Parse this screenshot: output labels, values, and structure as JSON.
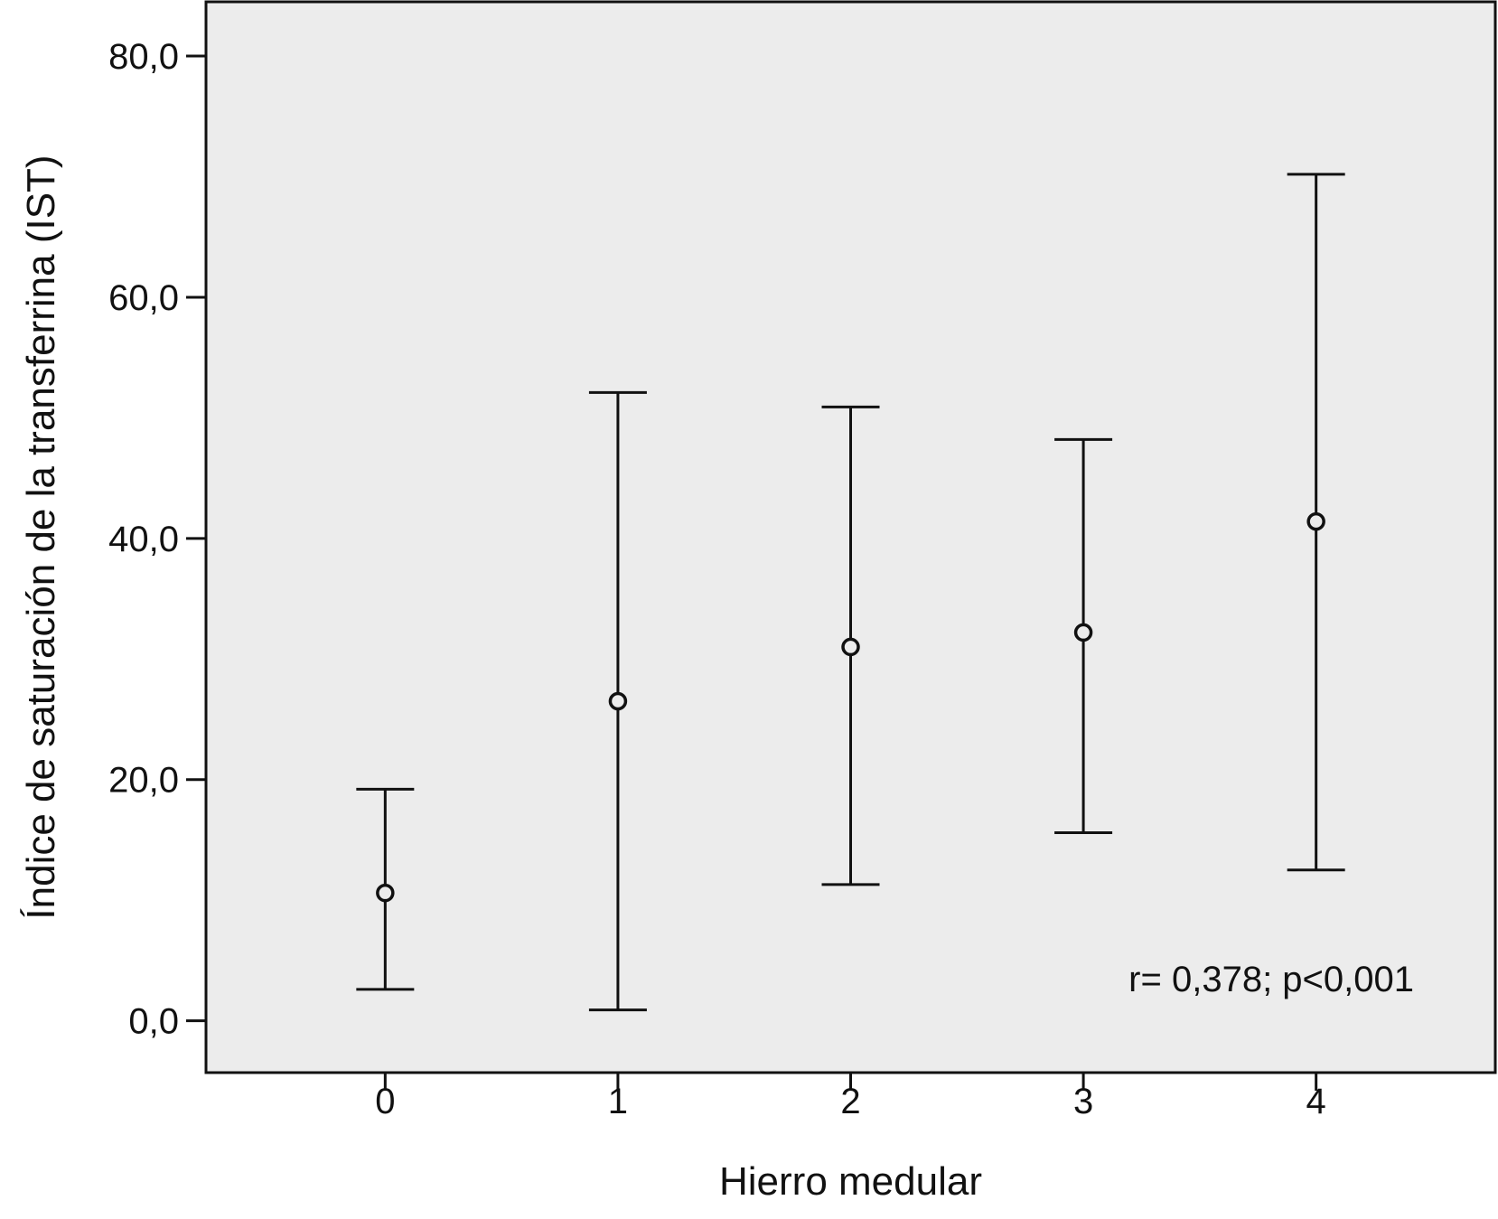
{
  "chart_data": {
    "type": "scatter",
    "subtype": "error-bar",
    "title": "",
    "xlabel": "Hierro medular",
    "ylabel": "Índice de saturación de la transferrina (IST)",
    "x_categories": [
      "0",
      "1",
      "2",
      "3",
      "4"
    ],
    "y_ticks": [
      "0,0",
      "20,0",
      "40,0",
      "60,0",
      "80,0"
    ],
    "ylim": [
      -4.3,
      84.5
    ],
    "xlim": [
      -0.77,
      4.77
    ],
    "grid": false,
    "plot_background": "#ececec",
    "series": [
      {
        "points": [
          {
            "x": "0",
            "mean": 10.6,
            "low": 2.6,
            "high": 19.2
          },
          {
            "x": "1",
            "mean": 26.5,
            "low": 0.9,
            "high": 52.1
          },
          {
            "x": "2",
            "mean": 31.0,
            "low": 11.3,
            "high": 50.9
          },
          {
            "x": "3",
            "mean": 32.2,
            "low": 15.6,
            "high": 48.2
          },
          {
            "x": "4",
            "mean": 41.4,
            "low": 12.5,
            "high": 70.2
          }
        ]
      }
    ],
    "annotation": "r= 0,378; p<0,001"
  }
}
